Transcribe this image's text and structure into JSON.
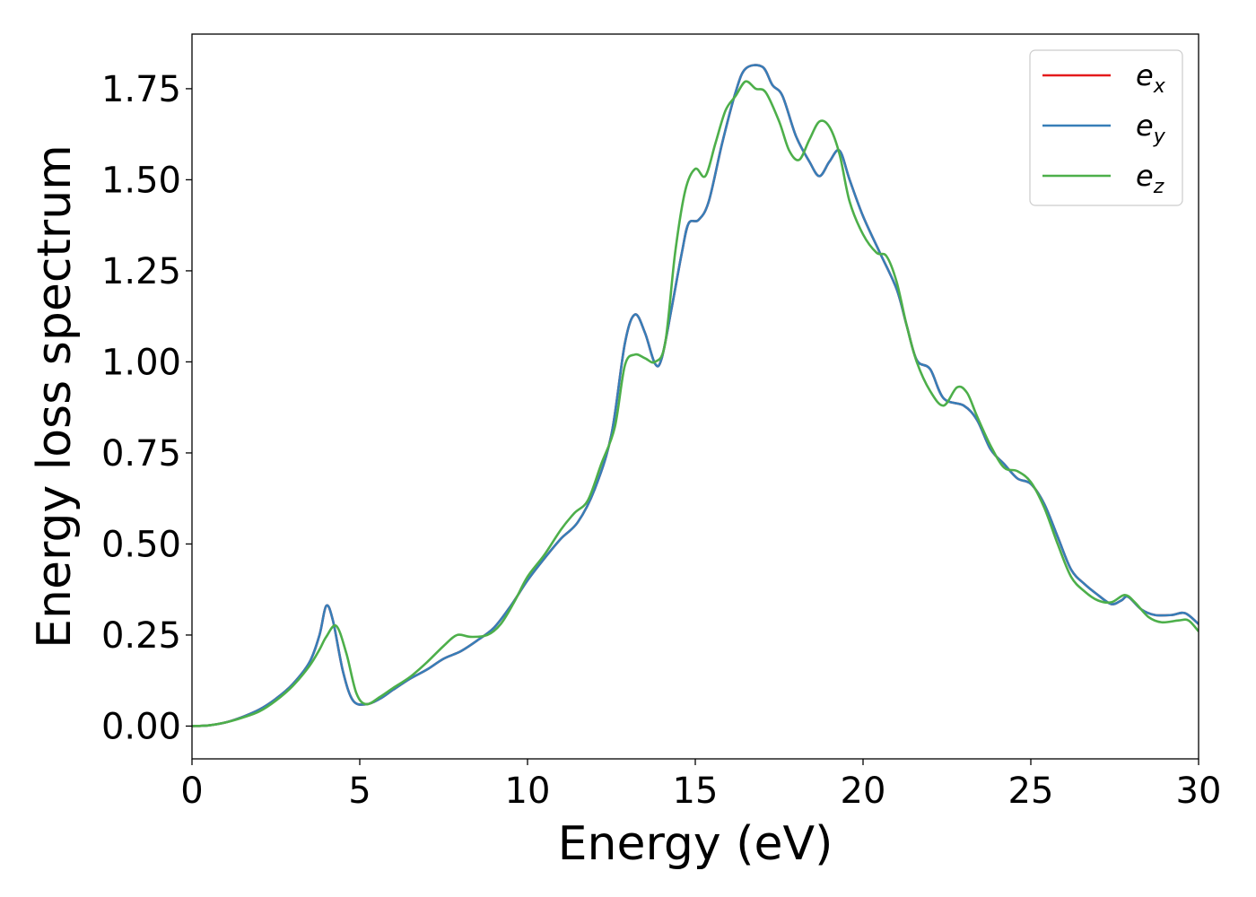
{
  "chart_data": {
    "type": "line",
    "title": "",
    "xlabel": "Energy (eV)",
    "ylabel": "Energy loss spectrum",
    "xlim": [
      0,
      30
    ],
    "ylim": [
      -0.09,
      1.9
    ],
    "xticks": [
      0,
      5,
      10,
      15,
      20,
      25,
      30
    ],
    "xtick_labels": [
      "0",
      "5",
      "10",
      "15",
      "20",
      "25",
      "30"
    ],
    "yticks": [
      0.0,
      0.25,
      0.5,
      0.75,
      1.0,
      1.25,
      1.5,
      1.75
    ],
    "ytick_labels": [
      "0.00",
      "0.25",
      "0.50",
      "0.75",
      "1.00",
      "1.25",
      "1.50",
      "1.75"
    ],
    "grid": false,
    "legend_position": "top-right",
    "series": [
      {
        "name": "e",
        "subscript": "x",
        "color": "#e41a1c",
        "points": [
          [
            0,
            0
          ],
          [
            0.5,
            0.002
          ],
          [
            1,
            0.01
          ],
          [
            1.5,
            0.025
          ],
          [
            2,
            0.045
          ],
          [
            2.5,
            0.075
          ],
          [
            3,
            0.115
          ],
          [
            3.5,
            0.175
          ],
          [
            3.8,
            0.25
          ],
          [
            4.0,
            0.33
          ],
          [
            4.2,
            0.29
          ],
          [
            4.5,
            0.15
          ],
          [
            4.8,
            0.07
          ],
          [
            5.2,
            0.06
          ],
          [
            5.6,
            0.075
          ],
          [
            6.0,
            0.1
          ],
          [
            6.5,
            0.13
          ],
          [
            7.0,
            0.155
          ],
          [
            7.5,
            0.185
          ],
          [
            8.0,
            0.205
          ],
          [
            8.5,
            0.235
          ],
          [
            9.0,
            0.27
          ],
          [
            9.5,
            0.33
          ],
          [
            10.0,
            0.4
          ],
          [
            10.5,
            0.46
          ],
          [
            11.0,
            0.515
          ],
          [
            11.5,
            0.56
          ],
          [
            12.0,
            0.65
          ],
          [
            12.5,
            0.8
          ],
          [
            12.9,
            1.05
          ],
          [
            13.2,
            1.13
          ],
          [
            13.5,
            1.08
          ],
          [
            13.8,
            0.995
          ],
          [
            14.0,
            1.01
          ],
          [
            14.3,
            1.15
          ],
          [
            14.6,
            1.3
          ],
          [
            14.8,
            1.38
          ],
          [
            15.1,
            1.39
          ],
          [
            15.4,
            1.44
          ],
          [
            15.8,
            1.6
          ],
          [
            16.2,
            1.74
          ],
          [
            16.5,
            1.805
          ],
          [
            17.0,
            1.81
          ],
          [
            17.3,
            1.76
          ],
          [
            17.6,
            1.73
          ],
          [
            18.0,
            1.62
          ],
          [
            18.4,
            1.55
          ],
          [
            18.7,
            1.51
          ],
          [
            19.0,
            1.55
          ],
          [
            19.3,
            1.58
          ],
          [
            19.6,
            1.5
          ],
          [
            20.0,
            1.4
          ],
          [
            20.5,
            1.3
          ],
          [
            21.0,
            1.2
          ],
          [
            21.3,
            1.1
          ],
          [
            21.6,
            1.005
          ],
          [
            22.0,
            0.98
          ],
          [
            22.4,
            0.9
          ],
          [
            23.0,
            0.88
          ],
          [
            23.4,
            0.84
          ],
          [
            23.8,
            0.76
          ],
          [
            24.2,
            0.72
          ],
          [
            24.6,
            0.68
          ],
          [
            25.0,
            0.665
          ],
          [
            25.4,
            0.61
          ],
          [
            25.8,
            0.52
          ],
          [
            26.2,
            0.43
          ],
          [
            26.6,
            0.39
          ],
          [
            27.0,
            0.36
          ],
          [
            27.4,
            0.335
          ],
          [
            27.7,
            0.345
          ],
          [
            27.9,
            0.355
          ],
          [
            28.3,
            0.32
          ],
          [
            28.7,
            0.305
          ],
          [
            29.2,
            0.305
          ],
          [
            29.6,
            0.31
          ],
          [
            30.0,
            0.28
          ]
        ]
      },
      {
        "name": "e",
        "subscript": "y",
        "color": "#377eb8",
        "points": [
          [
            0,
            0
          ],
          [
            0.5,
            0.002
          ],
          [
            1,
            0.01
          ],
          [
            1.5,
            0.025
          ],
          [
            2,
            0.045
          ],
          [
            2.5,
            0.075
          ],
          [
            3,
            0.115
          ],
          [
            3.5,
            0.175
          ],
          [
            3.8,
            0.25
          ],
          [
            4.0,
            0.33
          ],
          [
            4.2,
            0.29
          ],
          [
            4.5,
            0.15
          ],
          [
            4.8,
            0.07
          ],
          [
            5.2,
            0.06
          ],
          [
            5.6,
            0.075
          ],
          [
            6.0,
            0.1
          ],
          [
            6.5,
            0.13
          ],
          [
            7.0,
            0.155
          ],
          [
            7.5,
            0.185
          ],
          [
            8.0,
            0.205
          ],
          [
            8.5,
            0.235
          ],
          [
            9.0,
            0.27
          ],
          [
            9.5,
            0.33
          ],
          [
            10.0,
            0.4
          ],
          [
            10.5,
            0.46
          ],
          [
            11.0,
            0.515
          ],
          [
            11.5,
            0.56
          ],
          [
            12.0,
            0.65
          ],
          [
            12.5,
            0.8
          ],
          [
            12.9,
            1.05
          ],
          [
            13.2,
            1.13
          ],
          [
            13.5,
            1.08
          ],
          [
            13.8,
            0.995
          ],
          [
            14.0,
            1.01
          ],
          [
            14.3,
            1.15
          ],
          [
            14.6,
            1.3
          ],
          [
            14.8,
            1.38
          ],
          [
            15.1,
            1.39
          ],
          [
            15.4,
            1.44
          ],
          [
            15.8,
            1.6
          ],
          [
            16.2,
            1.74
          ],
          [
            16.5,
            1.805
          ],
          [
            17.0,
            1.81
          ],
          [
            17.3,
            1.76
          ],
          [
            17.6,
            1.73
          ],
          [
            18.0,
            1.62
          ],
          [
            18.4,
            1.55
          ],
          [
            18.7,
            1.51
          ],
          [
            19.0,
            1.55
          ],
          [
            19.3,
            1.58
          ],
          [
            19.6,
            1.5
          ],
          [
            20.0,
            1.4
          ],
          [
            20.5,
            1.3
          ],
          [
            21.0,
            1.2
          ],
          [
            21.3,
            1.1
          ],
          [
            21.6,
            1.005
          ],
          [
            22.0,
            0.98
          ],
          [
            22.4,
            0.9
          ],
          [
            23.0,
            0.88
          ],
          [
            23.4,
            0.84
          ],
          [
            23.8,
            0.76
          ],
          [
            24.2,
            0.72
          ],
          [
            24.6,
            0.68
          ],
          [
            25.0,
            0.665
          ],
          [
            25.4,
            0.61
          ],
          [
            25.8,
            0.52
          ],
          [
            26.2,
            0.43
          ],
          [
            26.6,
            0.39
          ],
          [
            27.0,
            0.36
          ],
          [
            27.4,
            0.335
          ],
          [
            27.7,
            0.345
          ],
          [
            27.9,
            0.355
          ],
          [
            28.3,
            0.32
          ],
          [
            28.7,
            0.305
          ],
          [
            29.2,
            0.305
          ],
          [
            29.6,
            0.31
          ],
          [
            30.0,
            0.28
          ]
        ]
      },
      {
        "name": "e",
        "subscript": "z",
        "color": "#4daf4a",
        "points": [
          [
            0,
            0
          ],
          [
            0.5,
            0.002
          ],
          [
            1,
            0.01
          ],
          [
            1.5,
            0.023
          ],
          [
            2,
            0.04
          ],
          [
            2.5,
            0.07
          ],
          [
            3,
            0.11
          ],
          [
            3.5,
            0.165
          ],
          [
            3.8,
            0.21
          ],
          [
            4.0,
            0.245
          ],
          [
            4.3,
            0.275
          ],
          [
            4.6,
            0.2
          ],
          [
            4.9,
            0.09
          ],
          [
            5.2,
            0.06
          ],
          [
            5.6,
            0.08
          ],
          [
            6.0,
            0.105
          ],
          [
            6.5,
            0.135
          ],
          [
            7.0,
            0.175
          ],
          [
            7.5,
            0.22
          ],
          [
            7.9,
            0.25
          ],
          [
            8.3,
            0.245
          ],
          [
            8.8,
            0.25
          ],
          [
            9.2,
            0.28
          ],
          [
            9.6,
            0.34
          ],
          [
            10.0,
            0.41
          ],
          [
            10.5,
            0.47
          ],
          [
            11.0,
            0.54
          ],
          [
            11.4,
            0.585
          ],
          [
            11.8,
            0.62
          ],
          [
            12.2,
            0.72
          ],
          [
            12.6,
            0.82
          ],
          [
            12.9,
            0.99
          ],
          [
            13.2,
            1.02
          ],
          [
            13.5,
            1.01
          ],
          [
            13.8,
            1.0
          ],
          [
            14.1,
            1.05
          ],
          [
            14.4,
            1.3
          ],
          [
            14.7,
            1.47
          ],
          [
            15.0,
            1.53
          ],
          [
            15.3,
            1.51
          ],
          [
            15.6,
            1.6
          ],
          [
            15.9,
            1.69
          ],
          [
            16.2,
            1.73
          ],
          [
            16.5,
            1.77
          ],
          [
            16.8,
            1.75
          ],
          [
            17.1,
            1.74
          ],
          [
            17.5,
            1.66
          ],
          [
            17.8,
            1.58
          ],
          [
            18.1,
            1.555
          ],
          [
            18.4,
            1.61
          ],
          [
            18.7,
            1.66
          ],
          [
            19.0,
            1.645
          ],
          [
            19.3,
            1.57
          ],
          [
            19.6,
            1.44
          ],
          [
            20.0,
            1.35
          ],
          [
            20.4,
            1.3
          ],
          [
            20.7,
            1.29
          ],
          [
            21.0,
            1.22
          ],
          [
            21.3,
            1.1
          ],
          [
            21.6,
            1.0
          ],
          [
            22.0,
            0.92
          ],
          [
            22.4,
            0.88
          ],
          [
            22.8,
            0.93
          ],
          [
            23.1,
            0.915
          ],
          [
            23.4,
            0.85
          ],
          [
            23.8,
            0.77
          ],
          [
            24.2,
            0.71
          ],
          [
            24.6,
            0.7
          ],
          [
            25.0,
            0.67
          ],
          [
            25.4,
            0.6
          ],
          [
            25.8,
            0.5
          ],
          [
            26.2,
            0.41
          ],
          [
            26.6,
            0.37
          ],
          [
            27.0,
            0.345
          ],
          [
            27.4,
            0.34
          ],
          [
            27.8,
            0.36
          ],
          [
            28.1,
            0.34
          ],
          [
            28.5,
            0.3
          ],
          [
            28.9,
            0.285
          ],
          [
            29.4,
            0.29
          ],
          [
            29.7,
            0.29
          ],
          [
            30.0,
            0.26
          ]
        ]
      }
    ]
  }
}
